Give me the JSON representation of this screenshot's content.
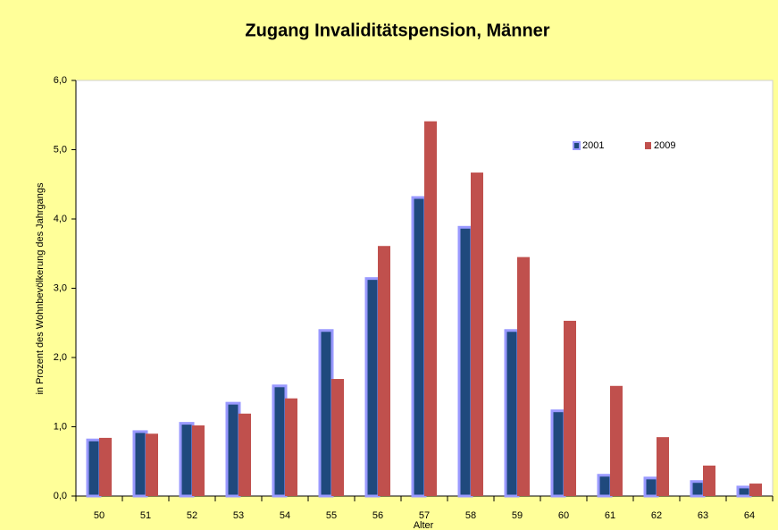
{
  "chart_data": {
    "type": "bar",
    "title": "Zugang Invaliditätspension, Männer",
    "x_label": "Alter",
    "y_label": "in Prozent des Wohnbevölkerung des Jahrgangs",
    "categories": [
      "50",
      "51",
      "52",
      "53",
      "54",
      "55",
      "56",
      "57",
      "58",
      "59",
      "60",
      "61",
      "62",
      "63",
      "64"
    ],
    "series": [
      {
        "name": "2001",
        "color": "#1f497d",
        "border": "#9999ff",
        "values": [
          0.81,
          0.93,
          1.05,
          1.34,
          1.59,
          2.39,
          3.14,
          4.31,
          3.88,
          2.39,
          1.23,
          0.3,
          0.26,
          0.21,
          0.13
        ]
      },
      {
        "name": "2009",
        "color": "#c0504d",
        "values": [
          0.84,
          0.9,
          1.02,
          1.19,
          1.41,
          1.69,
          3.61,
          5.41,
          4.67,
          3.45,
          2.53,
          1.59,
          0.85,
          0.44,
          0.18
        ]
      }
    ],
    "ylim": [
      0,
      6
    ],
    "yticks": [
      {
        "value": 0,
        "label": "0,0"
      },
      {
        "value": 1,
        "label": "1,0"
      },
      {
        "value": 2,
        "label": "2,0"
      },
      {
        "value": 3,
        "label": "3,0"
      },
      {
        "value": 4,
        "label": "4,0"
      },
      {
        "value": 5,
        "label": "5,0"
      },
      {
        "value": 6,
        "label": "6,0"
      }
    ],
    "grid": false,
    "legend": "top-right"
  }
}
